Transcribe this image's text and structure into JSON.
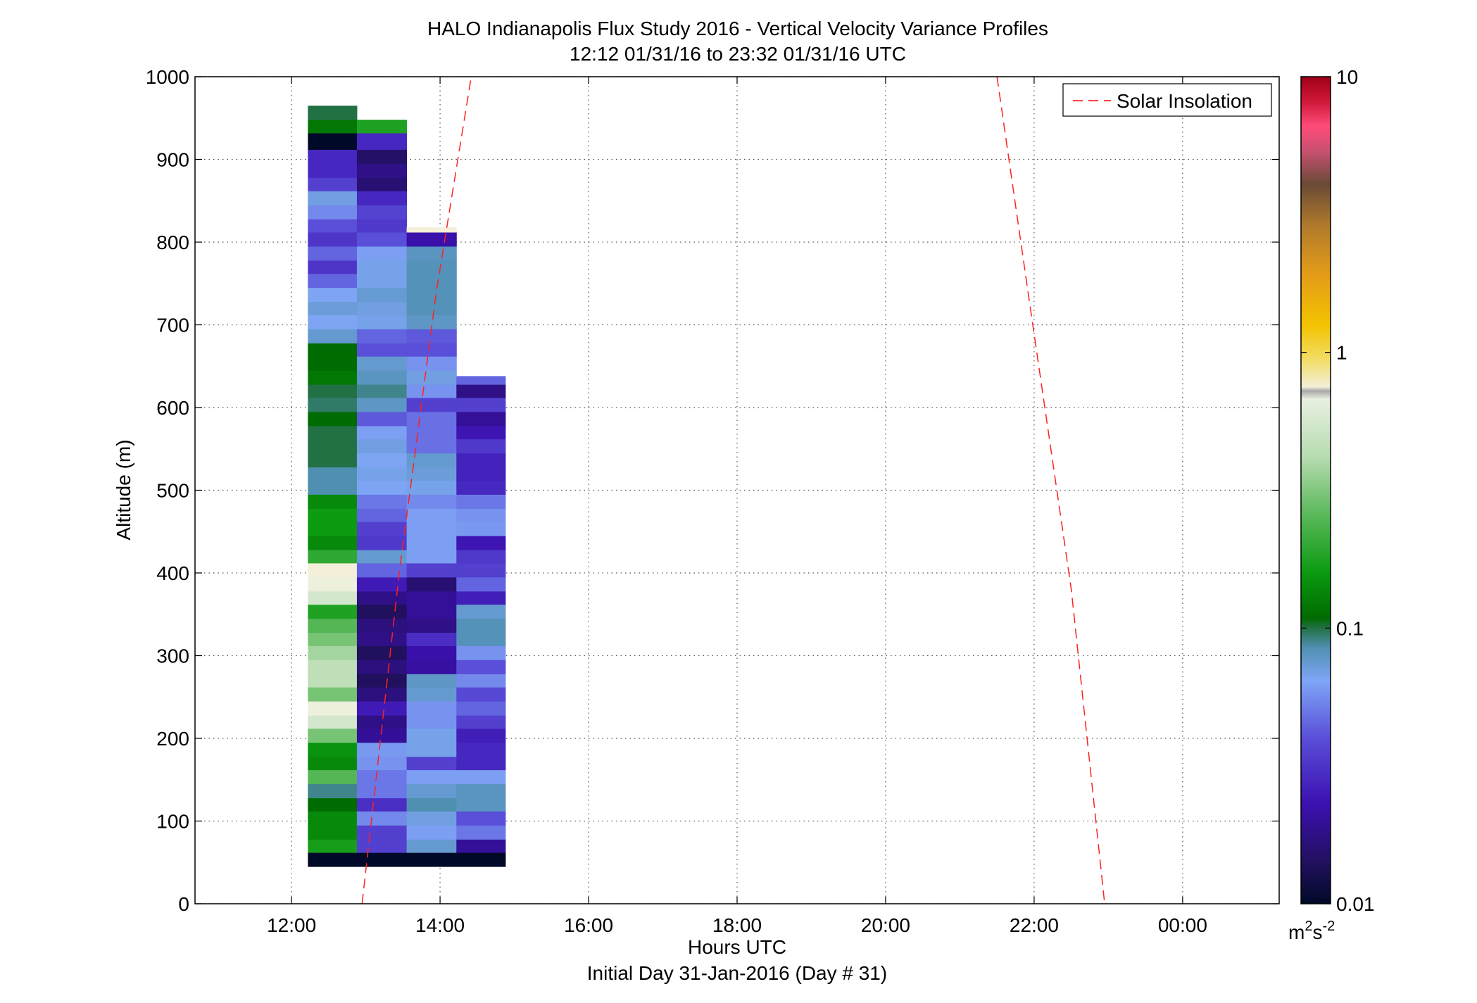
{
  "chart_data": {
    "type": "heatmap",
    "title": "HALO Indianapolis Flux Study 2016 - Vertical Velocity Variance Profiles",
    "subtitle": "12:12 01/31/16 to 23:32 01/31/16  UTC",
    "xlabel": "Hours UTC",
    "xlabel2": "Initial Day 31-Jan-2016 (Day # 31)",
    "ylabel": "Altitude (m)",
    "xlim": [
      10.7,
      25.3
    ],
    "ylim": [
      0,
      1000
    ],
    "xticks": [
      {
        "value": 12,
        "label": "12:00"
      },
      {
        "value": 14,
        "label": "14:00"
      },
      {
        "value": 16,
        "label": "16:00"
      },
      {
        "value": 18,
        "label": "18:00"
      },
      {
        "value": 20,
        "label": "20:00"
      },
      {
        "value": 22,
        "label": "22:00"
      },
      {
        "value": 24,
        "label": "00:00"
      }
    ],
    "yticks": [
      {
        "value": 0,
        "label": "0"
      },
      {
        "value": 100,
        "label": "100"
      },
      {
        "value": 200,
        "label": "200"
      },
      {
        "value": 300,
        "label": "300"
      },
      {
        "value": 400,
        "label": "400"
      },
      {
        "value": 500,
        "label": "500"
      },
      {
        "value": 600,
        "label": "600"
      },
      {
        "value": 700,
        "label": "700"
      },
      {
        "value": 800,
        "label": "800"
      },
      {
        "value": 900,
        "label": "900"
      },
      {
        "value": 1000,
        "label": "1000"
      }
    ],
    "grid": true,
    "legend": {
      "placement": "top-right",
      "entries": [
        "Solar Insolation"
      ]
    },
    "colorbar": {
      "scale": "log",
      "range": [
        0.01,
        10
      ],
      "ticks": [
        {
          "value": 0.01,
          "label": "0.01"
        },
        {
          "value": 0.1,
          "label": "0.1"
        },
        {
          "value": 1,
          "label": "1"
        },
        {
          "value": 10,
          "label": "10"
        }
      ],
      "unit_base": "m",
      "unit_sup1": "2",
      "unit_mid": "s",
      "unit_sup2": "-2"
    },
    "profiles": [
      {
        "t_start": 12.22,
        "t_end": 12.88,
        "bins": [
          [
            45,
            62,
            0.01
          ],
          [
            62,
            78,
            0.17
          ],
          [
            78,
            95,
            0.14
          ],
          [
            95,
            112,
            0.14
          ],
          [
            112,
            128,
            0.11
          ],
          [
            128,
            145,
            0.09
          ],
          [
            145,
            162,
            0.25
          ],
          [
            162,
            178,
            0.14
          ],
          [
            178,
            195,
            0.15
          ],
          [
            195,
            212,
            0.3
          ],
          [
            212,
            228,
            0.55
          ],
          [
            228,
            245,
            0.7
          ],
          [
            245,
            262,
            0.3
          ],
          [
            262,
            278,
            0.45
          ],
          [
            278,
            295,
            0.45
          ],
          [
            295,
            312,
            0.38
          ],
          [
            312,
            328,
            0.3
          ],
          [
            328,
            345,
            0.25
          ],
          [
            345,
            362,
            0.18
          ],
          [
            362,
            378,
            0.55
          ],
          [
            378,
            395,
            0.7
          ],
          [
            395,
            412,
            0.75
          ],
          [
            412,
            428,
            0.2
          ],
          [
            428,
            445,
            0.14
          ],
          [
            445,
            462,
            0.16
          ],
          [
            462,
            478,
            0.16
          ],
          [
            478,
            495,
            0.14
          ],
          [
            495,
            512,
            0.085
          ],
          [
            512,
            528,
            0.085
          ],
          [
            528,
            545,
            0.1
          ],
          [
            545,
            562,
            0.1
          ],
          [
            562,
            578,
            0.1
          ],
          [
            578,
            595,
            0.11
          ],
          [
            595,
            612,
            0.095
          ],
          [
            612,
            628,
            0.1
          ],
          [
            628,
            645,
            0.12
          ],
          [
            645,
            662,
            0.11
          ],
          [
            662,
            678,
            0.11
          ],
          [
            678,
            695,
            0.075
          ],
          [
            695,
            712,
            0.065
          ],
          [
            712,
            728,
            0.072
          ],
          [
            728,
            745,
            0.065
          ],
          [
            745,
            762,
            0.045
          ],
          [
            762,
            778,
            0.032
          ],
          [
            778,
            795,
            0.045
          ],
          [
            795,
            812,
            0.032
          ],
          [
            812,
            828,
            0.04
          ],
          [
            828,
            845,
            0.055
          ],
          [
            845,
            862,
            0.07
          ],
          [
            862,
            878,
            0.035
          ],
          [
            878,
            895,
            0.028
          ],
          [
            895,
            912,
            0.028
          ],
          [
            912,
            932,
            0.01
          ],
          [
            932,
            948,
            0.12
          ],
          [
            948,
            965,
            0.1
          ]
        ]
      },
      {
        "t_start": 12.88,
        "t_end": 13.55,
        "bins": [
          [
            45,
            62,
            0.01
          ],
          [
            62,
            78,
            0.035
          ],
          [
            78,
            95,
            0.035
          ],
          [
            95,
            112,
            0.055
          ],
          [
            112,
            128,
            0.03
          ],
          [
            128,
            145,
            0.05
          ],
          [
            145,
            162,
            0.05
          ],
          [
            162,
            178,
            0.058
          ],
          [
            178,
            195,
            0.06
          ],
          [
            195,
            212,
            0.02
          ],
          [
            212,
            228,
            0.018
          ],
          [
            228,
            245,
            0.025
          ],
          [
            245,
            262,
            0.017
          ],
          [
            262,
            278,
            0.014
          ],
          [
            278,
            295,
            0.017
          ],
          [
            295,
            312,
            0.014
          ],
          [
            312,
            328,
            0.018
          ],
          [
            328,
            345,
            0.017
          ],
          [
            345,
            362,
            0.014
          ],
          [
            362,
            378,
            0.018
          ],
          [
            378,
            395,
            0.025
          ],
          [
            395,
            412,
            0.045
          ],
          [
            412,
            428,
            0.075
          ],
          [
            428,
            445,
            0.033
          ],
          [
            445,
            462,
            0.035
          ],
          [
            462,
            478,
            0.045
          ],
          [
            478,
            495,
            0.05
          ],
          [
            495,
            512,
            0.065
          ],
          [
            512,
            528,
            0.068
          ],
          [
            528,
            545,
            0.065
          ],
          [
            545,
            562,
            0.07
          ],
          [
            562,
            578,
            0.062
          ],
          [
            578,
            595,
            0.042
          ],
          [
            595,
            612,
            0.078
          ],
          [
            612,
            628,
            0.09
          ],
          [
            628,
            645,
            0.08
          ],
          [
            645,
            662,
            0.075
          ],
          [
            662,
            678,
            0.04
          ],
          [
            678,
            695,
            0.045
          ],
          [
            695,
            712,
            0.068
          ],
          [
            712,
            728,
            0.07
          ],
          [
            728,
            745,
            0.074
          ],
          [
            745,
            762,
            0.068
          ],
          [
            762,
            778,
            0.068
          ],
          [
            778,
            795,
            0.062
          ],
          [
            795,
            812,
            0.04
          ],
          [
            812,
            828,
            0.033
          ],
          [
            828,
            845,
            0.036
          ],
          [
            845,
            862,
            0.028
          ],
          [
            862,
            878,
            0.016
          ],
          [
            878,
            895,
            0.018
          ],
          [
            895,
            912,
            0.015
          ],
          [
            912,
            932,
            0.028
          ],
          [
            932,
            948,
            0.18
          ]
        ]
      },
      {
        "t_start": 13.55,
        "t_end": 14.22,
        "bins": [
          [
            45,
            62,
            0.01
          ],
          [
            62,
            78,
            0.075
          ],
          [
            78,
            95,
            0.062
          ],
          [
            95,
            112,
            0.07
          ],
          [
            112,
            128,
            0.085
          ],
          [
            128,
            145,
            0.075
          ],
          [
            145,
            162,
            0.062
          ],
          [
            162,
            178,
            0.035
          ],
          [
            178,
            195,
            0.068
          ],
          [
            195,
            212,
            0.068
          ],
          [
            212,
            228,
            0.058
          ],
          [
            228,
            245,
            0.058
          ],
          [
            245,
            262,
            0.075
          ],
          [
            262,
            278,
            0.078
          ],
          [
            278,
            295,
            0.021
          ],
          [
            295,
            312,
            0.022
          ],
          [
            312,
            328,
            0.03
          ],
          [
            328,
            345,
            0.018
          ],
          [
            345,
            362,
            0.02
          ],
          [
            362,
            378,
            0.02
          ],
          [
            378,
            395,
            0.016
          ],
          [
            395,
            412,
            0.035
          ],
          [
            412,
            428,
            0.062
          ],
          [
            428,
            445,
            0.062
          ],
          [
            445,
            462,
            0.062
          ],
          [
            462,
            478,
            0.062
          ],
          [
            478,
            495,
            0.055
          ],
          [
            495,
            512,
            0.068
          ],
          [
            512,
            528,
            0.072
          ],
          [
            528,
            545,
            0.075
          ],
          [
            545,
            562,
            0.048
          ],
          [
            562,
            578,
            0.048
          ],
          [
            578,
            595,
            0.048
          ],
          [
            595,
            612,
            0.035
          ],
          [
            612,
            628,
            0.058
          ],
          [
            628,
            645,
            0.07
          ],
          [
            645,
            662,
            0.058
          ],
          [
            662,
            678,
            0.04
          ],
          [
            678,
            695,
            0.042
          ],
          [
            695,
            712,
            0.078
          ],
          [
            712,
            728,
            0.082
          ],
          [
            728,
            745,
            0.082
          ],
          [
            745,
            762,
            0.082
          ],
          [
            762,
            778,
            0.082
          ],
          [
            778,
            795,
            0.08
          ],
          [
            795,
            812,
            0.022
          ],
          [
            812,
            818,
            0.75
          ]
        ]
      },
      {
        "t_start": 14.22,
        "t_end": 14.88,
        "bins": [
          [
            45,
            62,
            0.01
          ],
          [
            62,
            78,
            0.02
          ],
          [
            78,
            95,
            0.05
          ],
          [
            95,
            112,
            0.04
          ],
          [
            112,
            128,
            0.08
          ],
          [
            128,
            145,
            0.08
          ],
          [
            145,
            162,
            0.062
          ],
          [
            162,
            178,
            0.028
          ],
          [
            178,
            195,
            0.028
          ],
          [
            195,
            212,
            0.026
          ],
          [
            212,
            228,
            0.035
          ],
          [
            228,
            245,
            0.045
          ],
          [
            245,
            262,
            0.038
          ],
          [
            262,
            278,
            0.055
          ],
          [
            278,
            295,
            0.04
          ],
          [
            295,
            312,
            0.058
          ],
          [
            312,
            328,
            0.082
          ],
          [
            328,
            345,
            0.082
          ],
          [
            345,
            362,
            0.075
          ],
          [
            362,
            378,
            0.026
          ],
          [
            378,
            395,
            0.045
          ],
          [
            395,
            412,
            0.035
          ],
          [
            412,
            428,
            0.033
          ],
          [
            428,
            445,
            0.024
          ],
          [
            445,
            462,
            0.06
          ],
          [
            462,
            478,
            0.058
          ],
          [
            478,
            495,
            0.05
          ],
          [
            495,
            512,
            0.028
          ],
          [
            512,
            528,
            0.027
          ],
          [
            528,
            545,
            0.027
          ],
          [
            545,
            562,
            0.033
          ],
          [
            562,
            578,
            0.024
          ],
          [
            578,
            595,
            0.02
          ],
          [
            595,
            612,
            0.035
          ],
          [
            612,
            628,
            0.018
          ],
          [
            628,
            638,
            0.045
          ]
        ]
      }
    ],
    "solar_insolation_lines": [
      {
        "name": "Solar Insolation",
        "points": [
          [
            12.95,
            0
          ],
          [
            13.45,
            400
          ],
          [
            13.95,
            740
          ],
          [
            14.42,
            1000
          ]
        ]
      },
      {
        "name": "Solar Insolation",
        "points": [
          [
            21.5,
            1000
          ],
          [
            21.95,
            720
          ],
          [
            22.5,
            380
          ],
          [
            22.95,
            0
          ]
        ]
      }
    ]
  }
}
